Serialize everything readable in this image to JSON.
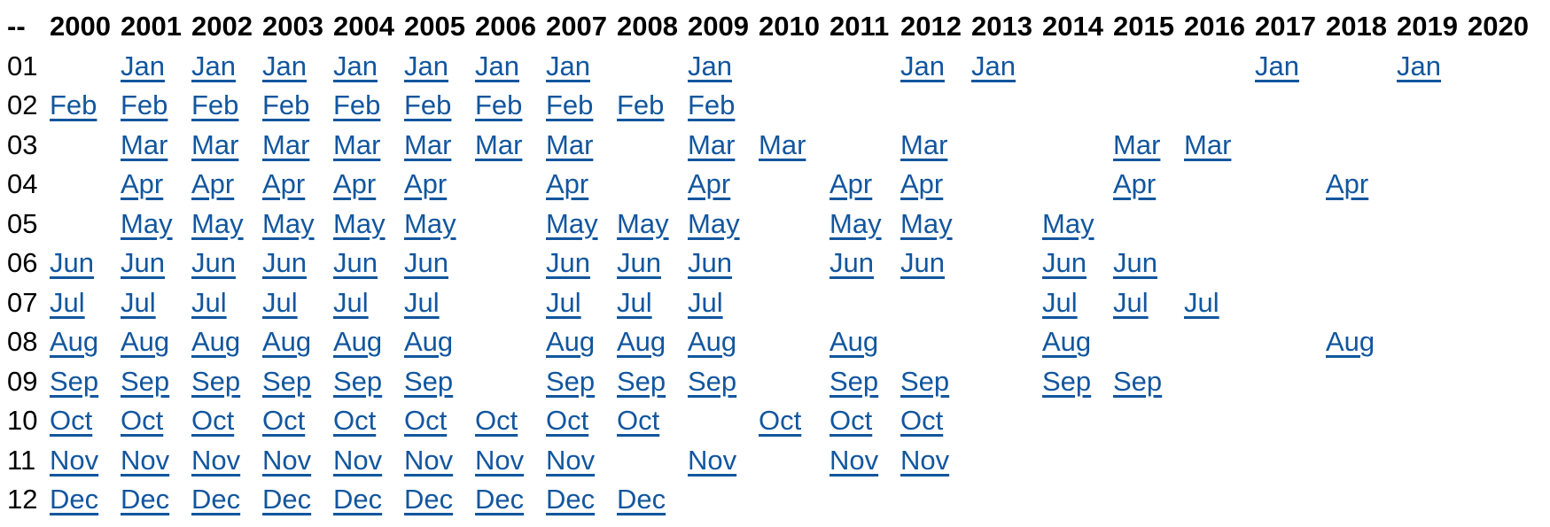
{
  "calendar": {
    "corner_header": "--",
    "years": [
      "2000",
      "2001",
      "2002",
      "2003",
      "2004",
      "2005",
      "2006",
      "2007",
      "2008",
      "2009",
      "2010",
      "2011",
      "2012",
      "2013",
      "2014",
      "2015",
      "2016",
      "2017",
      "2018",
      "2019",
      "2020"
    ],
    "months": [
      {
        "num": "01",
        "label": "Jan",
        "linked_years": [
          "2001",
          "2002",
          "2003",
          "2004",
          "2005",
          "2006",
          "2007",
          "2009",
          "2012",
          "2013",
          "2017",
          "2019"
        ]
      },
      {
        "num": "02",
        "label": "Feb",
        "linked_years": [
          "2000",
          "2001",
          "2002",
          "2003",
          "2004",
          "2005",
          "2006",
          "2007",
          "2008",
          "2009"
        ]
      },
      {
        "num": "03",
        "label": "Mar",
        "linked_years": [
          "2001",
          "2002",
          "2003",
          "2004",
          "2005",
          "2006",
          "2007",
          "2009",
          "2010",
          "2012",
          "2015",
          "2016"
        ]
      },
      {
        "num": "04",
        "label": "Apr",
        "linked_years": [
          "2001",
          "2002",
          "2003",
          "2004",
          "2005",
          "2007",
          "2009",
          "2011",
          "2012",
          "2015",
          "2018"
        ]
      },
      {
        "num": "05",
        "label": "May",
        "linked_years": [
          "2001",
          "2002",
          "2003",
          "2004",
          "2005",
          "2007",
          "2008",
          "2009",
          "2011",
          "2012",
          "2014"
        ]
      },
      {
        "num": "06",
        "label": "Jun",
        "linked_years": [
          "2000",
          "2001",
          "2002",
          "2003",
          "2004",
          "2005",
          "2007",
          "2008",
          "2009",
          "2011",
          "2012",
          "2014",
          "2015"
        ]
      },
      {
        "num": "07",
        "label": "Jul",
        "linked_years": [
          "2000",
          "2001",
          "2002",
          "2003",
          "2004",
          "2005",
          "2007",
          "2008",
          "2009",
          "2014",
          "2015",
          "2016"
        ]
      },
      {
        "num": "08",
        "label": "Aug",
        "linked_years": [
          "2000",
          "2001",
          "2002",
          "2003",
          "2004",
          "2005",
          "2007",
          "2008",
          "2009",
          "2011",
          "2014",
          "2018"
        ]
      },
      {
        "num": "09",
        "label": "Sep",
        "linked_years": [
          "2000",
          "2001",
          "2002",
          "2003",
          "2004",
          "2005",
          "2007",
          "2008",
          "2009",
          "2011",
          "2012",
          "2014",
          "2015"
        ]
      },
      {
        "num": "10",
        "label": "Oct",
        "linked_years": [
          "2000",
          "2001",
          "2002",
          "2003",
          "2004",
          "2005",
          "2006",
          "2007",
          "2008",
          "2010",
          "2011",
          "2012"
        ]
      },
      {
        "num": "11",
        "label": "Nov",
        "linked_years": [
          "2000",
          "2001",
          "2002",
          "2003",
          "2004",
          "2005",
          "2006",
          "2007",
          "2009",
          "2011",
          "2012"
        ]
      },
      {
        "num": "12",
        "label": "Dec",
        "linked_years": [
          "2000",
          "2001",
          "2002",
          "2003",
          "2004",
          "2005",
          "2006",
          "2007",
          "2008"
        ]
      }
    ],
    "colors": {
      "link": "#12569E",
      "text": "#000000",
      "background": "#FFFFFF"
    }
  }
}
